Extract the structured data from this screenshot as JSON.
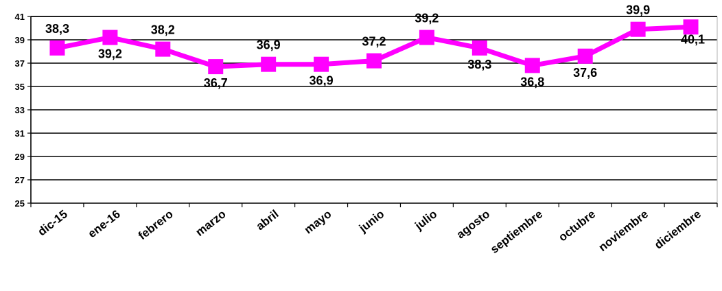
{
  "chart_data": {
    "type": "line",
    "title": "",
    "xlabel": "",
    "ylabel": "",
    "categories": [
      "dic-15",
      "ene-16",
      "febrero",
      "marzo",
      "abril",
      "mayo",
      "junio",
      "julio",
      "agosto",
      "septiembre",
      "octubre",
      "noviembre",
      "diciembre"
    ],
    "series": [
      {
        "values": [
          38.3,
          39.2,
          38.2,
          36.7,
          36.9,
          36.9,
          37.2,
          39.2,
          38.3,
          36.8,
          37.6,
          39.9,
          40.1
        ],
        "labels": [
          "38,3",
          "39,2",
          "38,2",
          "36,7",
          "36,9",
          "36,9",
          "37,2",
          "39,2",
          "38,3",
          "36,8",
          "37,6",
          "39,9",
          "40,1"
        ],
        "color": "#FF00FF",
        "marker": "square"
      }
    ],
    "ylim": [
      25,
      41
    ],
    "yticks": [
      25,
      27,
      29,
      31,
      33,
      35,
      37,
      39,
      41
    ],
    "ytick_labels": [
      "25",
      "27",
      "29",
      "31",
      "33",
      "35",
      "37",
      "39",
      "41"
    ],
    "grid": "horizontal",
    "legend": "none"
  }
}
